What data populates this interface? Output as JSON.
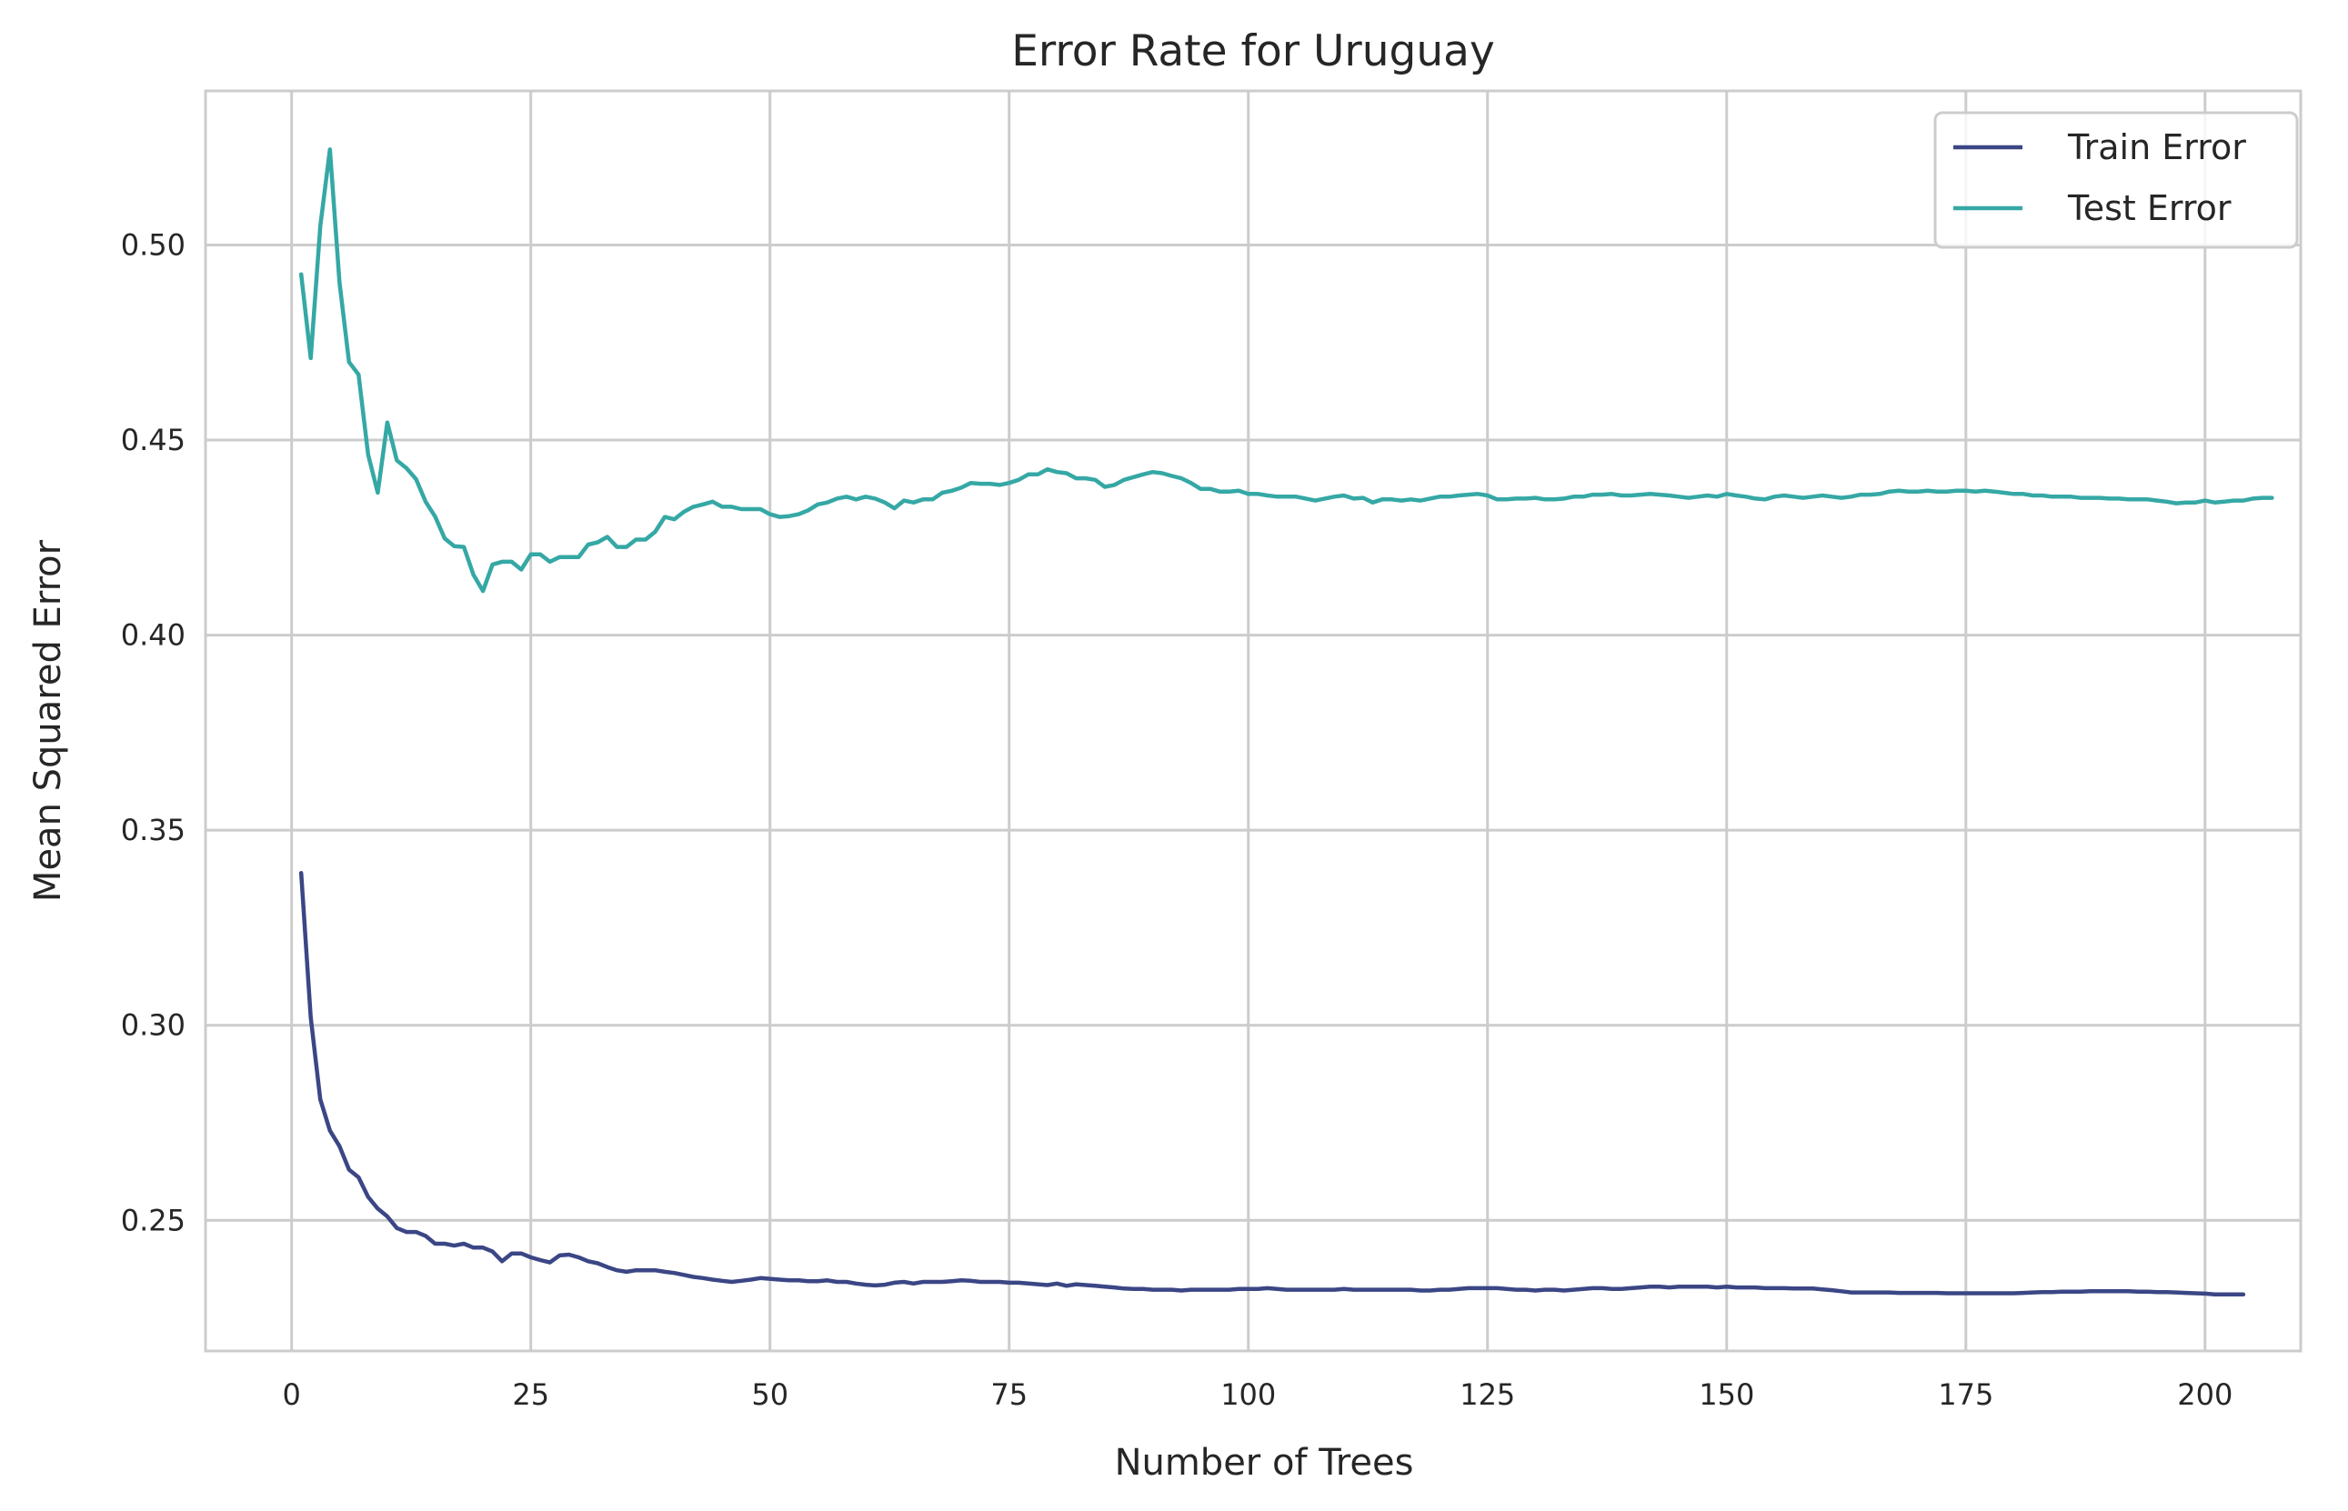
{
  "chart_data": {
    "type": "line",
    "title": "Error Rate for Uruguay",
    "xlabel": "Number of Trees",
    "ylabel": "Mean Squared Error",
    "xlim": [
      -9,
      210
    ],
    "ylim": [
      0.2165,
      0.5395
    ],
    "x_ticks": [
      0,
      25,
      50,
      75,
      100,
      125,
      150,
      175,
      200
    ],
    "x_tick_labels": [
      "0",
      "25",
      "50",
      "75",
      "100",
      "125",
      "150",
      "175",
      "200"
    ],
    "y_ticks": [
      0.25,
      0.3,
      0.35,
      0.4,
      0.45,
      0.5
    ],
    "y_tick_labels": [
      "0.25",
      "0.30",
      "0.35",
      "0.40",
      "0.45",
      "0.50"
    ],
    "grid": true,
    "legend": {
      "position": "top-right"
    },
    "x_start": 1,
    "series": [
      {
        "name": "Train Error",
        "color": "#3b4685",
        "values": [
          0.339,
          0.302,
          0.281,
          0.273,
          0.269,
          0.263,
          0.261,
          0.256,
          0.253,
          0.251,
          0.248,
          0.247,
          0.247,
          0.246,
          0.244,
          0.244,
          0.2435,
          0.244,
          0.243,
          0.243,
          0.242,
          0.2395,
          0.2415,
          0.2415,
          0.2405,
          0.2398,
          0.2392,
          0.241,
          0.2412,
          0.2405,
          0.2395,
          0.239,
          0.238,
          0.2372,
          0.2368,
          0.2372,
          0.2372,
          0.2372,
          0.2368,
          0.2365,
          0.236,
          0.2355,
          0.2352,
          0.2348,
          0.2345,
          0.2342,
          0.2345,
          0.2348,
          0.2352,
          0.235,
          0.2348,
          0.2346,
          0.2346,
          0.2344,
          0.2344,
          0.2346,
          0.2342,
          0.2342,
          0.2338,
          0.2335,
          0.2333,
          0.2335,
          0.234,
          0.2342,
          0.2338,
          0.2342,
          0.2342,
          0.2342,
          0.2344,
          0.2346,
          0.2345,
          0.2342,
          0.2342,
          0.2342,
          0.234,
          0.234,
          0.2338,
          0.2336,
          0.2334,
          0.2338,
          0.2332,
          0.2336,
          0.2334,
          0.2332,
          0.233,
          0.2328,
          0.2325,
          0.2324,
          0.2324,
          0.2322,
          0.2322,
          0.2322,
          0.232,
          0.2322,
          0.2322,
          0.2322,
          0.2322,
          0.2322,
          0.2324,
          0.2324,
          0.2324,
          0.2326,
          0.2324,
          0.2322,
          0.2322,
          0.2322,
          0.2322,
          0.2322,
          0.2322,
          0.2324,
          0.2322,
          0.2322,
          0.2322,
          0.2322,
          0.2322,
          0.2322,
          0.2322,
          0.232,
          0.232,
          0.2322,
          0.2322,
          0.2324,
          0.2326,
          0.2326,
          0.2326,
          0.2326,
          0.2324,
          0.2322,
          0.2322,
          0.232,
          0.2322,
          0.2322,
          0.232,
          0.2322,
          0.2324,
          0.2326,
          0.2326,
          0.2324,
          0.2324,
          0.2326,
          0.2328,
          0.233,
          0.233,
          0.2328,
          0.233,
          0.233,
          0.233,
          0.233,
          0.2328,
          0.233,
          0.2328,
          0.2328,
          0.2328,
          0.2326,
          0.2326,
          0.2326,
          0.2325,
          0.2325,
          0.2325,
          0.2323,
          0.2321,
          0.2318,
          0.2315,
          0.2315,
          0.2315,
          0.2315,
          0.2315,
          0.2314,
          0.2314,
          0.2314,
          0.2314,
          0.2314,
          0.2313,
          0.2313,
          0.2313,
          0.2313,
          0.2313,
          0.2313,
          0.2313,
          0.2313,
          0.2314,
          0.2315,
          0.2316,
          0.2316,
          0.2317,
          0.2317,
          0.2317,
          0.2318,
          0.2318,
          0.2318,
          0.2318,
          0.2318,
          0.2317,
          0.2317,
          0.2316,
          0.2316,
          0.2315,
          0.2314,
          0.2313,
          0.2312,
          0.231,
          0.231,
          0.231,
          0.231
        ]
      },
      {
        "name": "Test Error",
        "color": "#35a8a5",
        "values": [
          0.4925,
          0.471,
          0.5048,
          0.5245,
          0.4905,
          0.47,
          0.4668,
          0.4463,
          0.4365,
          0.4545,
          0.4448,
          0.4428,
          0.44,
          0.4342,
          0.4304,
          0.4248,
          0.4228,
          0.4226,
          0.4155,
          0.4113,
          0.4181,
          0.4188,
          0.4188,
          0.4168,
          0.4207,
          0.4207,
          0.4188,
          0.42,
          0.42,
          0.42,
          0.4232,
          0.4238,
          0.4252,
          0.4226,
          0.4226,
          0.4245,
          0.4245,
          0.4265,
          0.4303,
          0.4297,
          0.4316,
          0.4329,
          0.4335,
          0.4342,
          0.4329,
          0.4329,
          0.4323,
          0.4323,
          0.4323,
          0.431,
          0.4303,
          0.4305,
          0.431,
          0.432,
          0.4335,
          0.434,
          0.435,
          0.4355,
          0.4348,
          0.4355,
          0.435,
          0.434,
          0.4325,
          0.4345,
          0.434,
          0.4348,
          0.4348,
          0.4365,
          0.437,
          0.4378,
          0.439,
          0.4388,
          0.4388,
          0.4385,
          0.439,
          0.4398,
          0.4412,
          0.4412,
          0.4425,
          0.4418,
          0.4415,
          0.4402,
          0.4402,
          0.4398,
          0.438,
          0.4385,
          0.4398,
          0.4405,
          0.4412,
          0.4418,
          0.4415,
          0.4408,
          0.4402,
          0.439,
          0.4375,
          0.4375,
          0.4368,
          0.4368,
          0.437,
          0.4362,
          0.4362,
          0.4358,
          0.4355,
          0.4355,
          0.4355,
          0.435,
          0.4345,
          0.435,
          0.4355,
          0.4358,
          0.435,
          0.4352,
          0.434,
          0.4348,
          0.4348,
          0.4345,
          0.4348,
          0.4345,
          0.435,
          0.4355,
          0.4355,
          0.4358,
          0.436,
          0.4362,
          0.4358,
          0.4348,
          0.4348,
          0.435,
          0.435,
          0.4352,
          0.4348,
          0.4348,
          0.435,
          0.4355,
          0.4355,
          0.436,
          0.436,
          0.4362,
          0.4358,
          0.4358,
          0.436,
          0.4362,
          0.436,
          0.4358,
          0.4355,
          0.4352,
          0.4355,
          0.4358,
          0.4355,
          0.4362,
          0.4358,
          0.4355,
          0.435,
          0.4348,
          0.4355,
          0.4358,
          0.4355,
          0.4352,
          0.4355,
          0.4358,
          0.4355,
          0.4352,
          0.4355,
          0.436,
          0.436,
          0.4362,
          0.4368,
          0.437,
          0.4368,
          0.4368,
          0.437,
          0.4368,
          0.4368,
          0.437,
          0.437,
          0.4368,
          0.437,
          0.4368,
          0.4365,
          0.4362,
          0.4362,
          0.4358,
          0.4358,
          0.4355,
          0.4355,
          0.4355,
          0.4352,
          0.4352,
          0.4352,
          0.435,
          0.435,
          0.4348,
          0.4348,
          0.4348,
          0.4345,
          0.4342,
          0.4338,
          0.434,
          0.434,
          0.4345,
          0.434,
          0.4342,
          0.4345,
          0.4345,
          0.435,
          0.4352,
          0.4352
        ]
      }
    ]
  }
}
